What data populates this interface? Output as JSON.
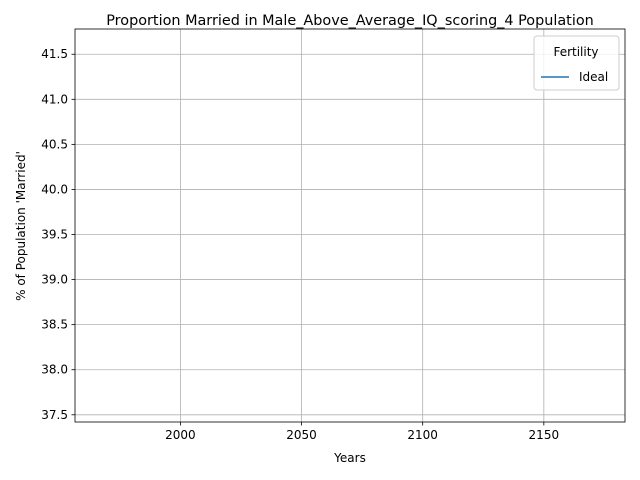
{
  "chart_data": {
    "type": "line",
    "title": "Proportion Married in Male_Above_Average_IQ_scoring_4 Population",
    "xlabel": "Years",
    "ylabel": "% of Population 'Married'",
    "xlim": [
      1956.5,
      2183.5
    ],
    "ylim": [
      37.42,
      41.78
    ],
    "xticks": [
      2000,
      2050,
      2100,
      2150
    ],
    "xtick_labels": [
      "2000",
      "2050",
      "2100",
      "2150"
    ],
    "yticks": [
      37.5,
      38.0,
      38.5,
      39.0,
      39.5,
      40.0,
      40.5,
      41.0,
      41.5
    ],
    "ytick_labels": [
      "37.5",
      "38.0",
      "38.5",
      "39.0",
      "39.5",
      "40.0",
      "40.5",
      "41.0",
      "41.5"
    ],
    "grid": true,
    "legend": {
      "title": "Fertility",
      "position": "top-right"
    },
    "series": [
      {
        "name": "Ideal",
        "color": "#1f77b4",
        "x": [],
        "y": []
      }
    ]
  }
}
